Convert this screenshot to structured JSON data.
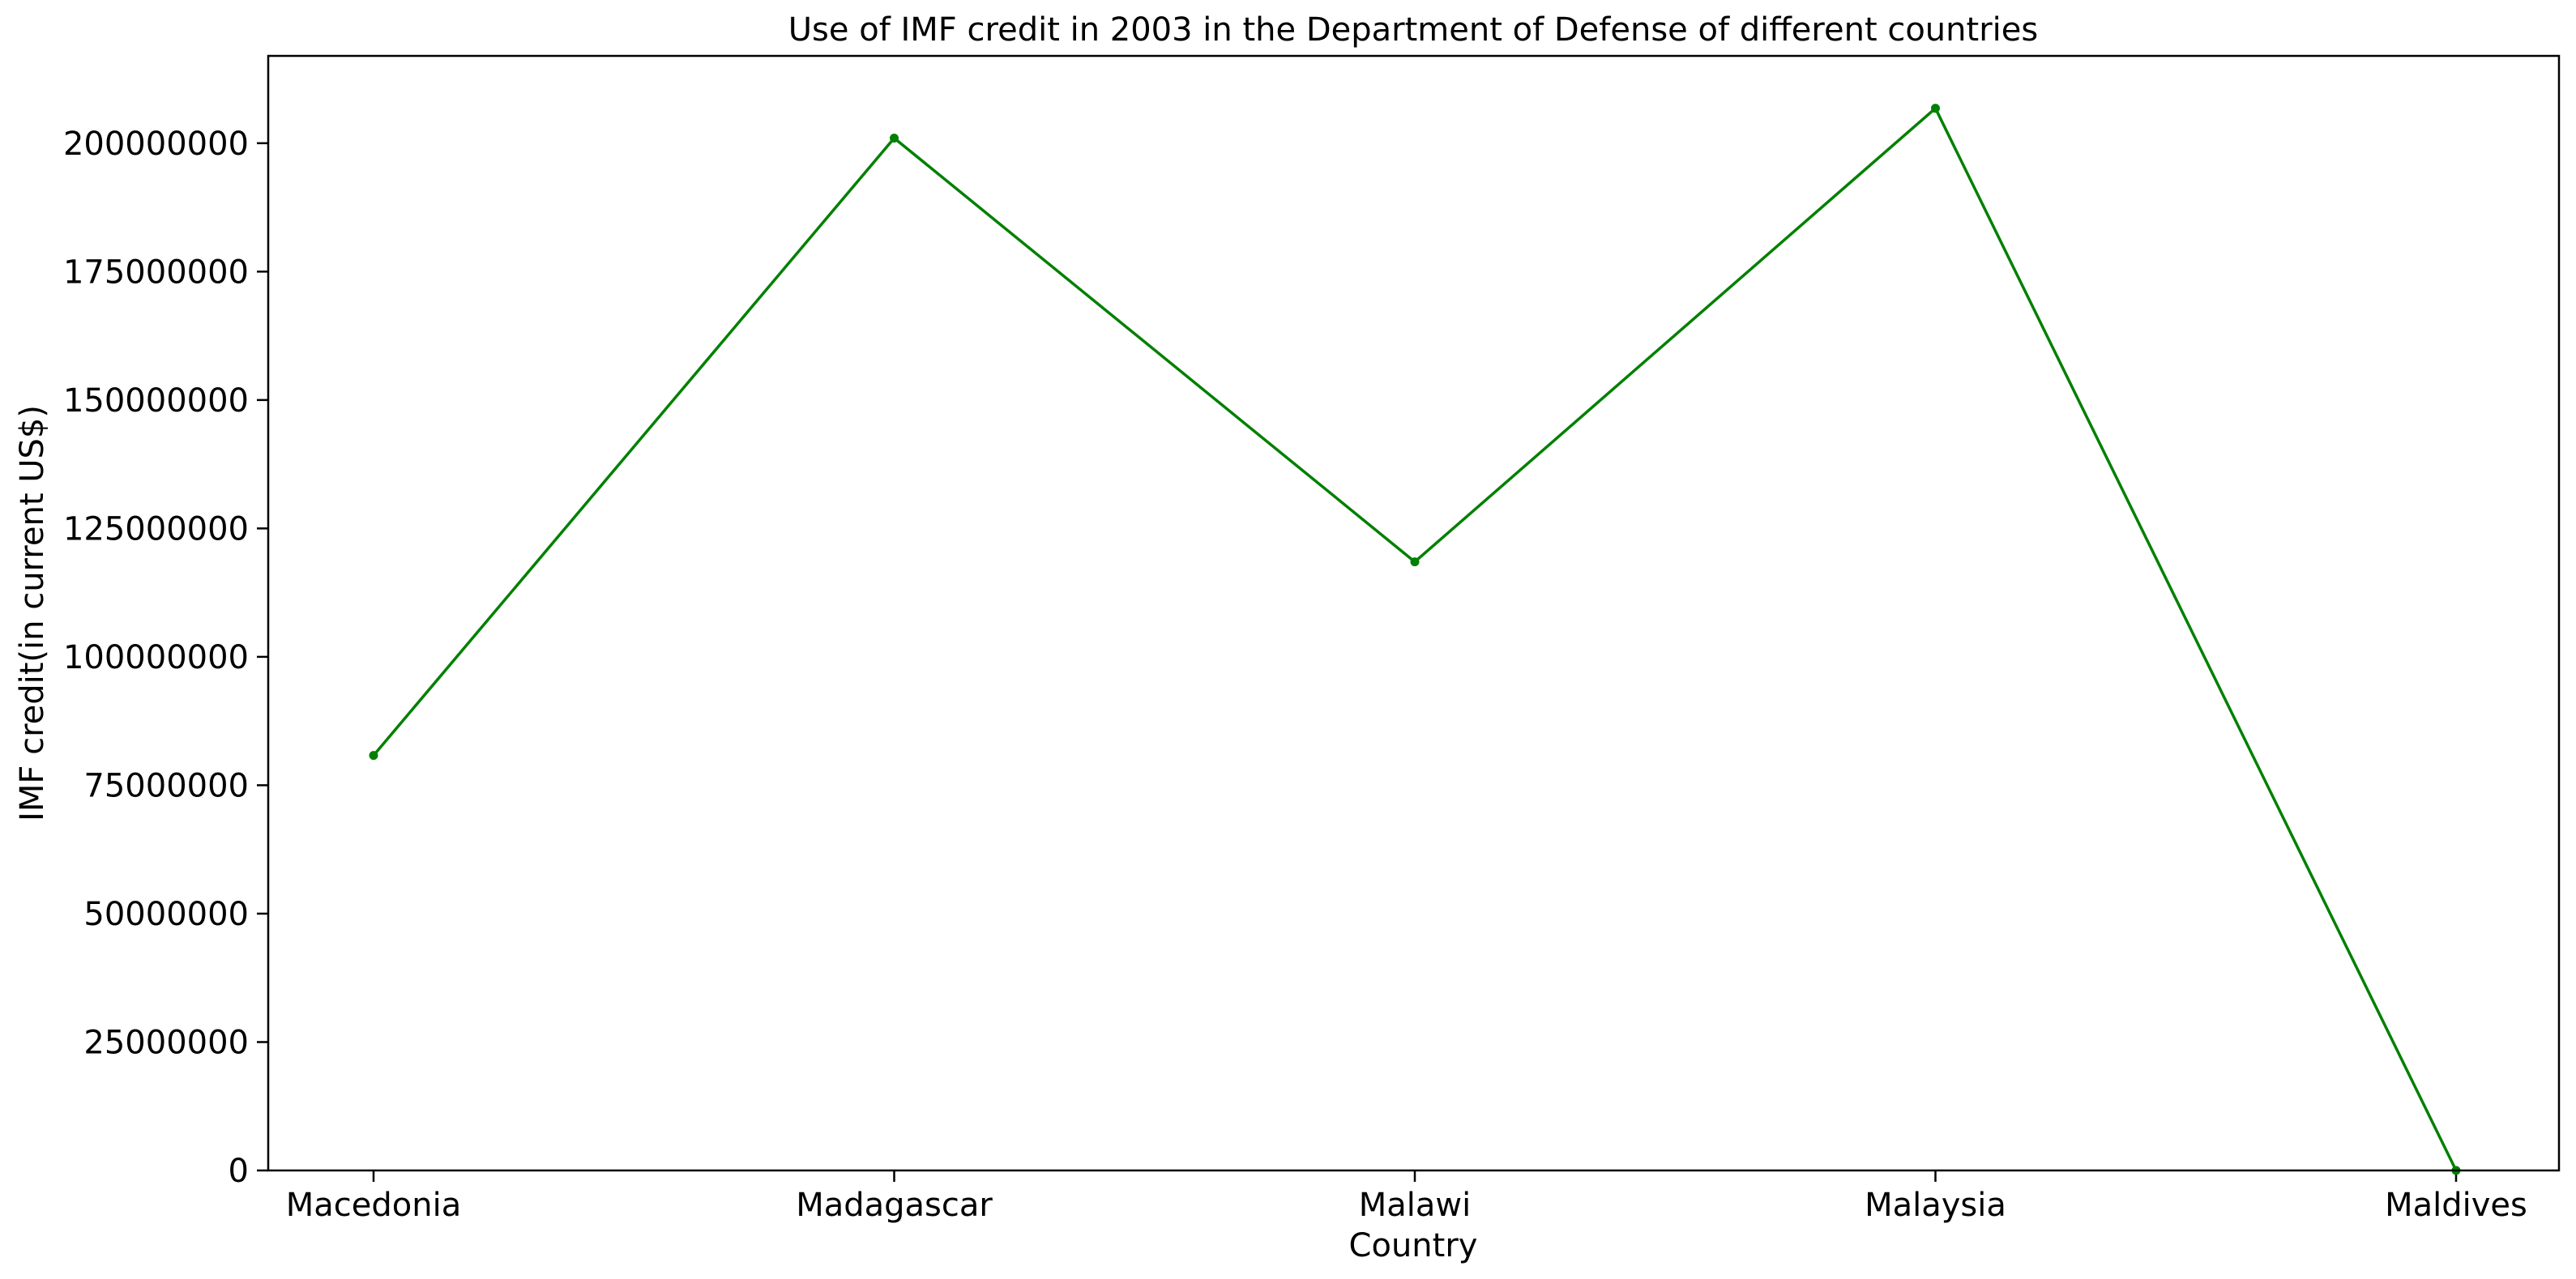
{
  "chart_data": {
    "type": "line",
    "title": "Use of IMF credit in 2003 in the Department of Defense of different countries",
    "xlabel": "Country",
    "ylabel": "IMF credit(in current US$)",
    "categories": [
      "Macedonia",
      "Madagascar",
      "Malawi",
      "Malaysia",
      "Maldives"
    ],
    "series": [
      {
        "values": [
          80800000,
          201000000,
          118500000,
          206800000,
          0
        ],
        "color": "#008000"
      }
    ],
    "ylim": [
      0,
      217000000
    ],
    "yticks": [
      0,
      25000000,
      50000000,
      75000000,
      100000000,
      125000000,
      150000000,
      175000000,
      200000000
    ],
    "ytick_labels": [
      "0",
      "25000000",
      "50000000",
      "75000000",
      "100000000",
      "125000000",
      "150000000",
      "175000000",
      "200000000"
    ],
    "grid": false,
    "legend": "none",
    "marker": "dot"
  }
}
